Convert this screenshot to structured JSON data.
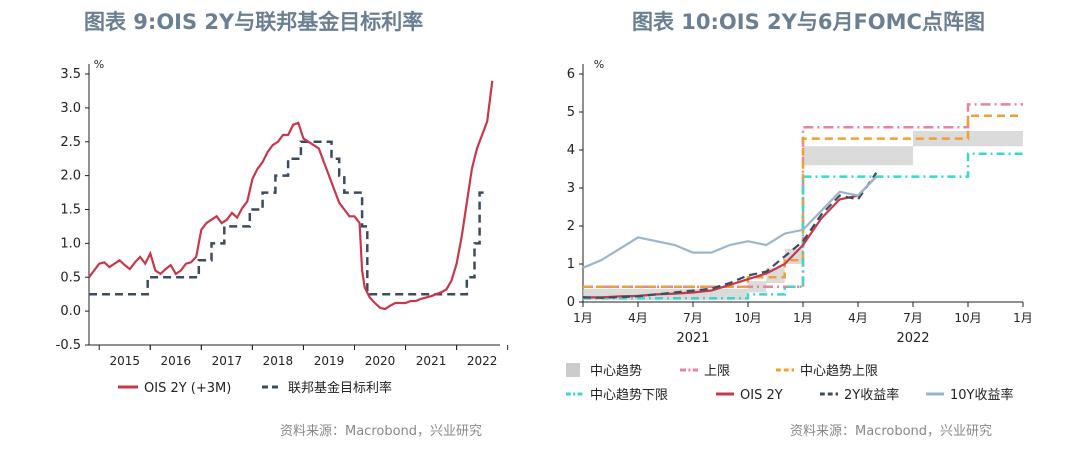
{
  "left": {
    "title": "图表 9:OIS 2Y与联邦基金目标利率",
    "source": "资料来源：Macrobond，兴业研究",
    "chart_data": {
      "type": "line",
      "unit": "%",
      "ylim": [
        -0.5,
        3.5
      ],
      "yticks": [
        "3.5",
        "3.0",
        "2.5",
        "2.0",
        "1.5",
        "1.0",
        "0.5",
        "0.0",
        "-0.5"
      ],
      "xlim": [
        2014.8,
        2022.85
      ],
      "xticks": [
        "2015",
        "2016",
        "2017",
        "2018",
        "2019",
        "2020",
        "2021",
        "2022"
      ],
      "legend": [
        "OIS 2Y (+3M)",
        "联邦基金目标利率"
      ],
      "colors": {
        "ois": "#c8374a",
        "ffr": "#3d4b5e"
      },
      "series": [
        {
          "name": "OIS 2Y (+3M)",
          "x": [
            2014.8,
            2014.9,
            2015.0,
            2015.1,
            2015.2,
            2015.3,
            2015.4,
            2015.5,
            2015.6,
            2015.7,
            2015.8,
            2015.9,
            2016.0,
            2016.1,
            2016.2,
            2016.3,
            2016.4,
            2016.5,
            2016.6,
            2016.7,
            2016.8,
            2016.9,
            2017.0,
            2017.1,
            2017.2,
            2017.3,
            2017.4,
            2017.5,
            2017.6,
            2017.7,
            2017.8,
            2017.9,
            2018.0,
            2018.1,
            2018.2,
            2018.3,
            2018.4,
            2018.5,
            2018.6,
            2018.7,
            2018.8,
            2018.9,
            2019.0,
            2019.1,
            2019.2,
            2019.3,
            2019.4,
            2019.5,
            2019.6,
            2019.7,
            2019.8,
            2019.9,
            2020.0,
            2020.1,
            2020.15,
            2020.2,
            2020.3,
            2020.4,
            2020.5,
            2020.6,
            2020.7,
            2020.8,
            2020.9,
            2021.0,
            2021.1,
            2021.2,
            2021.3,
            2021.4,
            2021.5,
            2021.6,
            2021.7,
            2021.8,
            2021.9,
            2022.0,
            2022.1,
            2022.2,
            2022.3,
            2022.4,
            2022.5,
            2022.6,
            2022.7
          ],
          "y": [
            0.5,
            0.6,
            0.7,
            0.72,
            0.65,
            0.7,
            0.75,
            0.68,
            0.62,
            0.72,
            0.8,
            0.7,
            0.85,
            0.6,
            0.55,
            0.62,
            0.68,
            0.55,
            0.6,
            0.7,
            0.72,
            0.8,
            1.2,
            1.3,
            1.35,
            1.4,
            1.3,
            1.35,
            1.45,
            1.38,
            1.52,
            1.62,
            1.95,
            2.1,
            2.2,
            2.35,
            2.45,
            2.5,
            2.6,
            2.6,
            2.75,
            2.78,
            2.55,
            2.5,
            2.45,
            2.4,
            2.2,
            2.0,
            1.8,
            1.6,
            1.5,
            1.4,
            1.4,
            1.3,
            0.6,
            0.35,
            0.2,
            0.12,
            0.05,
            0.03,
            0.08,
            0.12,
            0.12,
            0.12,
            0.15,
            0.15,
            0.18,
            0.2,
            0.22,
            0.25,
            0.28,
            0.32,
            0.45,
            0.7,
            1.1,
            1.6,
            2.1,
            2.4,
            2.6,
            2.8,
            3.4
          ]
        },
        {
          "name": "联邦基金目标利率",
          "x": [
            2014.8,
            2015.95,
            2015.95,
            2016.95,
            2016.95,
            2017.2,
            2017.2,
            2017.45,
            2017.45,
            2017.95,
            2017.95,
            2018.2,
            2018.2,
            2018.45,
            2018.45,
            2018.7,
            2018.7,
            2018.95,
            2018.95,
            2019.55,
            2019.55,
            2019.7,
            2019.7,
            2019.8,
            2019.8,
            2020.15,
            2020.15,
            2020.25,
            2020.25,
            2022.2,
            2022.2,
            2022.35,
            2022.35,
            2022.45,
            2022.45,
            2022.6
          ],
          "y": [
            0.25,
            0.25,
            0.5,
            0.5,
            0.75,
            0.75,
            1.0,
            1.0,
            1.25,
            1.25,
            1.5,
            1.5,
            1.75,
            1.75,
            2.0,
            2.0,
            2.25,
            2.25,
            2.5,
            2.5,
            2.25,
            2.25,
            2.0,
            2.0,
            1.75,
            1.75,
            1.25,
            1.25,
            0.25,
            0.25,
            0.5,
            0.5,
            1.0,
            1.0,
            1.75,
            1.75
          ]
        }
      ]
    }
  },
  "right": {
    "title": "图表 10:OIS 2Y与6月FOMC点阵图",
    "source": "资料来源：Macrobond，兴业研究",
    "chart_data": {
      "type": "line",
      "unit": "%",
      "ylim": [
        0,
        6
      ],
      "yticks": [
        "6",
        "5",
        "4",
        "3",
        "2",
        "1",
        "0"
      ],
      "xlim": [
        0,
        24
      ],
      "xticks": [
        "1月",
        "4月",
        "7月",
        "10月",
        "1月",
        "4月",
        "7月",
        "10月",
        "1月"
      ],
      "years": [
        "2021",
        "2022"
      ],
      "legend": [
        "中心趋势",
        "上限",
        "中心趋势上限",
        "中心趋势下限",
        "OIS 2Y",
        "2Y收益率",
        "10Y收益率"
      ],
      "colors": {
        "band": "#cccccc",
        "upper": "#e8859a",
        "trend_upper": "#f0a030",
        "trend_lower": "#3dd6cc",
        "ois": "#c8374a",
        "yield2y": "#3d4b5e",
        "yield10y": "#9ab6cc"
      },
      "band": {
        "x": [
          0,
          9,
          9,
          10,
          10,
          11,
          11,
          12,
          12,
          17,
          17,
          18,
          18,
          21,
          21,
          24
        ],
        "low": [
          0.05,
          0.05,
          0.25,
          0.25,
          0.5,
          0.5,
          1.0,
          1.0,
          3.6,
          3.6,
          3.6,
          3.6,
          4.1,
          4.1,
          4.1,
          4.1
        ],
        "high": [
          0.35,
          0.35,
          0.55,
          0.55,
          0.9,
          0.9,
          1.4,
          1.4,
          4.1,
          4.1,
          4.1,
          4.1,
          4.5,
          4.5,
          4.5,
          4.5
        ]
      },
      "series": [
        {
          "name": "上限",
          "x": [
            0,
            11,
            11,
            12,
            12,
            21,
            21,
            24
          ],
          "y": [
            0.4,
            0.4,
            0.4,
            0.4,
            4.6,
            4.6,
            5.2,
            5.2
          ]
        },
        {
          "name": "中心趋势上限",
          "x": [
            0,
            9,
            9,
            11,
            11,
            12,
            12,
            21,
            21,
            24
          ],
          "y": [
            0.4,
            0.4,
            0.65,
            0.65,
            1.1,
            1.1,
            4.3,
            4.3,
            4.9,
            4.9
          ]
        },
        {
          "name": "中心趋势下限",
          "x": [
            0,
            9,
            9,
            11,
            11,
            12,
            12,
            21,
            21,
            24
          ],
          "y": [
            0.1,
            0.1,
            0.2,
            0.2,
            0.4,
            0.4,
            3.3,
            3.3,
            3.9,
            3.9
          ]
        },
        {
          "name": "OIS 2Y",
          "x": [
            0,
            1,
            2,
            3,
            4,
            5,
            6,
            7,
            8,
            9,
            10,
            11,
            12,
            13,
            14,
            15,
            16
          ],
          "y": [
            0.12,
            0.12,
            0.15,
            0.16,
            0.2,
            0.22,
            0.25,
            0.3,
            0.45,
            0.6,
            0.75,
            1.0,
            1.5,
            2.2,
            2.7,
            2.8,
            3.3
          ]
        },
        {
          "name": "2Y收益率",
          "x": [
            0,
            1,
            2,
            3,
            4,
            5,
            6,
            7,
            8,
            9,
            10,
            11,
            12,
            13,
            14,
            15,
            16
          ],
          "y": [
            0.12,
            0.11,
            0.13,
            0.15,
            0.2,
            0.25,
            0.3,
            0.35,
            0.5,
            0.7,
            0.8,
            1.2,
            1.6,
            2.3,
            2.8,
            2.7,
            3.4
          ]
        },
        {
          "name": "10Y收益率",
          "x": [
            0,
            1,
            2,
            3,
            4,
            5,
            6,
            7,
            8,
            9,
            10,
            11,
            12,
            13,
            14,
            15,
            16
          ],
          "y": [
            0.9,
            1.1,
            1.4,
            1.7,
            1.6,
            1.5,
            1.3,
            1.3,
            1.5,
            1.6,
            1.5,
            1.8,
            1.9,
            2.4,
            2.9,
            2.8,
            3.3
          ]
        }
      ]
    }
  }
}
